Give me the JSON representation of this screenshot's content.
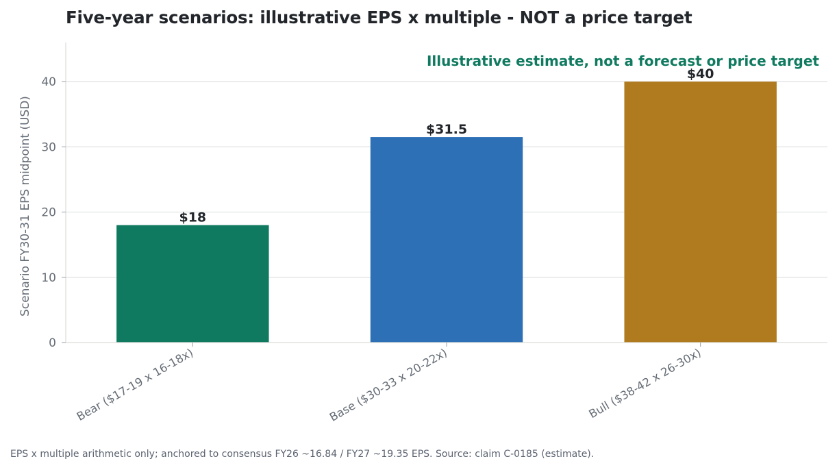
{
  "chart_data": {
    "type": "bar",
    "title": "Five-year scenarios: illustrative EPS x multiple - NOT a price target",
    "annotation": "Illustrative estimate, not a forecast or price target",
    "ylabel": "Scenario FY30-31 EPS midpoint (USD)",
    "xlabel": "",
    "ylim": [
      0,
      46
    ],
    "yticks": [
      0,
      10,
      20,
      30,
      40
    ],
    "grid": "horizontal",
    "categories": [
      "Bear ($17-19 x 16-18x)",
      "Base ($30-33 x 20-22x)",
      "Bull ($38-42 x 26-30x)"
    ],
    "values": [
      18,
      31.5,
      40
    ],
    "value_labels": [
      "$18",
      "$31.5",
      "$40"
    ],
    "colors": [
      "#0f7a5f",
      "#2e70b5",
      "#b07b1f"
    ],
    "annotation_color": "#0f7a5f"
  },
  "footnote": "EPS x multiple arithmetic only; anchored to consensus FY26 ~16.84 / FY27 ~19.35 EPS. Source: claim C-0185 (estimate)."
}
